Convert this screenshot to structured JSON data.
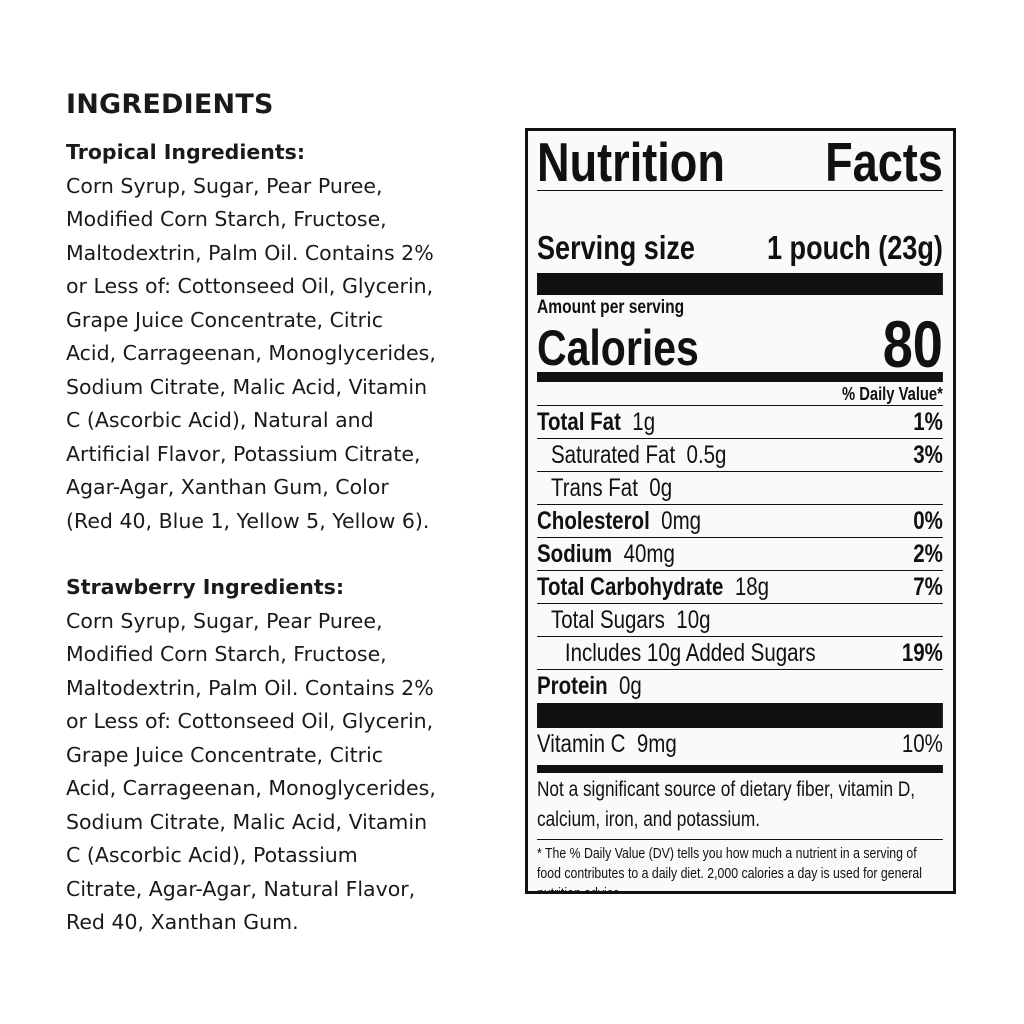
{
  "ingredients": {
    "heading": "INGREDIENTS",
    "sections": [
      {
        "title": "Tropical Ingredients:",
        "lines": [
          "Corn Syrup, Sugar, Pear Puree,",
          "Modified Corn Starch, Fructose,",
          "Maltodextrin, Palm Oil. Contains 2%",
          "or Less of: Cottonseed Oil, Glycerin,",
          "Grape Juice Concentrate, Citric",
          "Acid, Carrageenan, Monoglycerides,",
          "Sodium Citrate, Malic Acid, Vitamin",
          "C (Ascorbic Acid), Natural and",
          "Artificial Flavor, Potassium Citrate,",
          "Agar-Agar, Xanthan Gum, Color",
          "(Red 40, Blue 1, Yellow 5, Yellow 6)."
        ]
      },
      {
        "title": "Strawberry Ingredients:",
        "lines": [
          "Corn Syrup, Sugar, Pear Puree,",
          "Modified Corn Starch, Fructose,",
          "Maltodextrin, Palm Oil. Contains 2%",
          "or Less of: Cottonseed Oil, Glycerin,",
          "Grape Juice Concentrate, Citric",
          "Acid, Carrageenan, Monoglycerides,",
          "Sodium Citrate, Malic Acid, Vitamin",
          "C (Ascorbic Acid), Potassium",
          "Citrate, Agar-Agar, Natural Flavor,",
          "Red 40, Xanthan Gum."
        ]
      }
    ]
  },
  "nutrition": {
    "title_1": "Nutrition",
    "title_2": "Facts",
    "serving_label": "Serving size",
    "serving_value": "1 pouch (23g)",
    "amount_per_serving": "Amount per serving",
    "calories_label": "Calories",
    "calories_value": "80",
    "dv_header": "% Daily Value*",
    "rows": [
      {
        "name": "Total Fat",
        "amount": "1g",
        "dv": "1%",
        "bold": true,
        "indent": 0
      },
      {
        "name": "Saturated Fat",
        "amount": "0.5g",
        "dv": "3%",
        "bold": false,
        "indent": 1
      },
      {
        "name": "Trans Fat",
        "amount": "0g",
        "dv": "",
        "bold": false,
        "indent": 1
      },
      {
        "name": "Cholesterol",
        "amount": "0mg",
        "dv": "0%",
        "bold": true,
        "indent": 0
      },
      {
        "name": "Sodium",
        "amount": "40mg",
        "dv": "2%",
        "bold": true,
        "indent": 0
      },
      {
        "name": "Total Carbohydrate",
        "amount": "18g",
        "dv": "7%",
        "bold": true,
        "indent": 0
      },
      {
        "name": "Total Sugars",
        "amount": "10g",
        "dv": "",
        "bold": false,
        "indent": 1
      },
      {
        "name": "Includes 10g Added Sugars",
        "amount": "",
        "dv": "19%",
        "bold": false,
        "indent": 2
      },
      {
        "name": "Protein",
        "amount": "0g",
        "dv": "",
        "bold": true,
        "indent": 0
      }
    ],
    "vitamin": {
      "name": "Vitamin C",
      "amount": "9mg",
      "dv": "10%"
    },
    "not_significant": "Not a significant source of dietary fiber, vitamin D, calcium, iron, and potassium.",
    "footnote": "* The % Daily Value (DV) tells you how much a nutrient in a serving of food contributes to a daily diet. 2,000 calories a day is used for general nutrition advice."
  }
}
